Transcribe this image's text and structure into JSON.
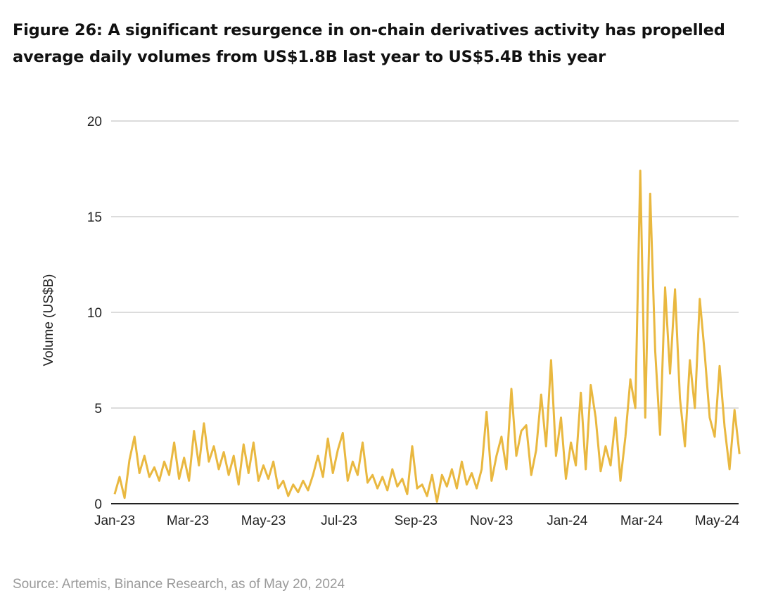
{
  "title": "Figure 26: A significant resurgence in on-chain derivatives activity has propelled average daily volumes from US$1.8B last year to US$5.4B this year",
  "source": "Source: Artemis, Binance Research, as of May 20, 2024",
  "chart_data": {
    "type": "line",
    "title": "Figure 26: A significant resurgence in on-chain derivatives activity has propelled average daily volumes from US$1.8B last year to US$5.4B this year",
    "xlabel": "",
    "ylabel": "Volume (US$B)",
    "ylim": [
      0,
      20
    ],
    "yticks": [
      "0",
      "5",
      "10",
      "15",
      "20"
    ],
    "xticks": [
      {
        "label": "Jan-23",
        "date": "2023-01-01"
      },
      {
        "label": "Mar-23",
        "date": "2023-03-01"
      },
      {
        "label": "May-23",
        "date": "2023-05-01"
      },
      {
        "label": "Jul-23",
        "date": "2023-07-01"
      },
      {
        "label": "Sep-23",
        "date": "2023-09-01"
      },
      {
        "label": "Nov-23",
        "date": "2023-11-01"
      },
      {
        "label": "Jan-24",
        "date": "2024-01-01"
      },
      {
        "label": "Mar-24",
        "date": "2024-03-01"
      },
      {
        "label": "May-24",
        "date": "2024-05-01"
      }
    ],
    "xlim": [
      "2023-01-01",
      "2024-05-20"
    ],
    "grid": "horizontal",
    "legend": "none",
    "line_color": "#E9B840",
    "x": [
      "2023-01-01",
      "2023-01-05",
      "2023-01-09",
      "2023-01-13",
      "2023-01-17",
      "2023-01-21",
      "2023-01-25",
      "2023-01-29",
      "2023-02-02",
      "2023-02-06",
      "2023-02-10",
      "2023-02-14",
      "2023-02-18",
      "2023-02-22",
      "2023-02-26",
      "2023-03-02",
      "2023-03-06",
      "2023-03-10",
      "2023-03-14",
      "2023-03-18",
      "2023-03-22",
      "2023-03-26",
      "2023-03-30",
      "2023-04-03",
      "2023-04-07",
      "2023-04-11",
      "2023-04-15",
      "2023-04-19",
      "2023-04-23",
      "2023-04-27",
      "2023-05-01",
      "2023-05-05",
      "2023-05-09",
      "2023-05-13",
      "2023-05-17",
      "2023-05-21",
      "2023-05-25",
      "2023-05-29",
      "2023-06-02",
      "2023-06-06",
      "2023-06-10",
      "2023-06-14",
      "2023-06-18",
      "2023-06-22",
      "2023-06-26",
      "2023-06-30",
      "2023-07-04",
      "2023-07-08",
      "2023-07-12",
      "2023-07-16",
      "2023-07-20",
      "2023-07-24",
      "2023-07-28",
      "2023-08-01",
      "2023-08-05",
      "2023-08-09",
      "2023-08-13",
      "2023-08-17",
      "2023-08-21",
      "2023-08-25",
      "2023-08-29",
      "2023-09-02",
      "2023-09-06",
      "2023-09-10",
      "2023-09-14",
      "2023-09-18",
      "2023-09-22",
      "2023-09-26",
      "2023-09-30",
      "2023-10-04",
      "2023-10-08",
      "2023-10-12",
      "2023-10-16",
      "2023-10-20",
      "2023-10-24",
      "2023-10-28",
      "2023-11-01",
      "2023-11-05",
      "2023-11-09",
      "2023-11-13",
      "2023-11-17",
      "2023-11-21",
      "2023-11-25",
      "2023-11-29",
      "2023-12-03",
      "2023-12-07",
      "2023-12-11",
      "2023-12-15",
      "2023-12-19",
      "2023-12-23",
      "2023-12-27",
      "2023-12-31",
      "2024-01-04",
      "2024-01-08",
      "2024-01-12",
      "2024-01-16",
      "2024-01-20",
      "2024-01-24",
      "2024-01-28",
      "2024-02-01",
      "2024-02-05",
      "2024-02-09",
      "2024-02-13",
      "2024-02-17",
      "2024-02-21",
      "2024-02-25",
      "2024-02-29",
      "2024-03-04",
      "2024-03-08",
      "2024-03-12",
      "2024-03-16",
      "2024-03-20",
      "2024-03-24",
      "2024-03-28",
      "2024-04-01",
      "2024-04-05",
      "2024-04-09",
      "2024-04-13",
      "2024-04-17",
      "2024-04-21",
      "2024-04-25",
      "2024-04-29",
      "2024-05-03",
      "2024-05-07",
      "2024-05-11",
      "2024-05-15",
      "2024-05-19"
    ],
    "series": [
      {
        "values": [
          0.5,
          1.4,
          0.3,
          2.3,
          3.5,
          1.6,
          2.5,
          1.4,
          1.9,
          1.2,
          2.2,
          1.5,
          3.2,
          1.3,
          2.4,
          1.2,
          3.8,
          2.0,
          4.2,
          2.2,
          3.0,
          1.8,
          2.7,
          1.5,
          2.5,
          1.0,
          3.1,
          1.6,
          3.2,
          1.2,
          2.0,
          1.3,
          2.2,
          0.8,
          1.2,
          0.4,
          1.0,
          0.6,
          1.2,
          0.7,
          1.5,
          2.5,
          1.4,
          3.4,
          1.6,
          2.8,
          3.7,
          1.2,
          2.2,
          1.5,
          3.2,
          1.1,
          1.5,
          0.8,
          1.4,
          0.7,
          1.8,
          0.9,
          1.3,
          0.5,
          3.0,
          0.8,
          1.0,
          0.4,
          1.5,
          0.1,
          1.5,
          0.9,
          1.8,
          0.8,
          2.2,
          1.0,
          1.6,
          0.8,
          1.8,
          4.8,
          1.2,
          2.5,
          3.5,
          1.8,
          6.0,
          2.5,
          3.8,
          4.1,
          1.5,
          2.8,
          5.7,
          3.0,
          7.5,
          2.5,
          4.5,
          1.3,
          3.2,
          2.0,
          5.8,
          1.8,
          6.2,
          4.5,
          1.7,
          3.0,
          2.0,
          4.5,
          1.2,
          3.5,
          6.5,
          5.0,
          17.4,
          4.5,
          16.2,
          8.0,
          3.6,
          11.3,
          6.8,
          11.2,
          5.5,
          3.0,
          7.5,
          5.0,
          10.7,
          7.8,
          4.5,
          3.5,
          7.2,
          4.0,
          1.8,
          4.9,
          2.6
        ]
      }
    ]
  }
}
